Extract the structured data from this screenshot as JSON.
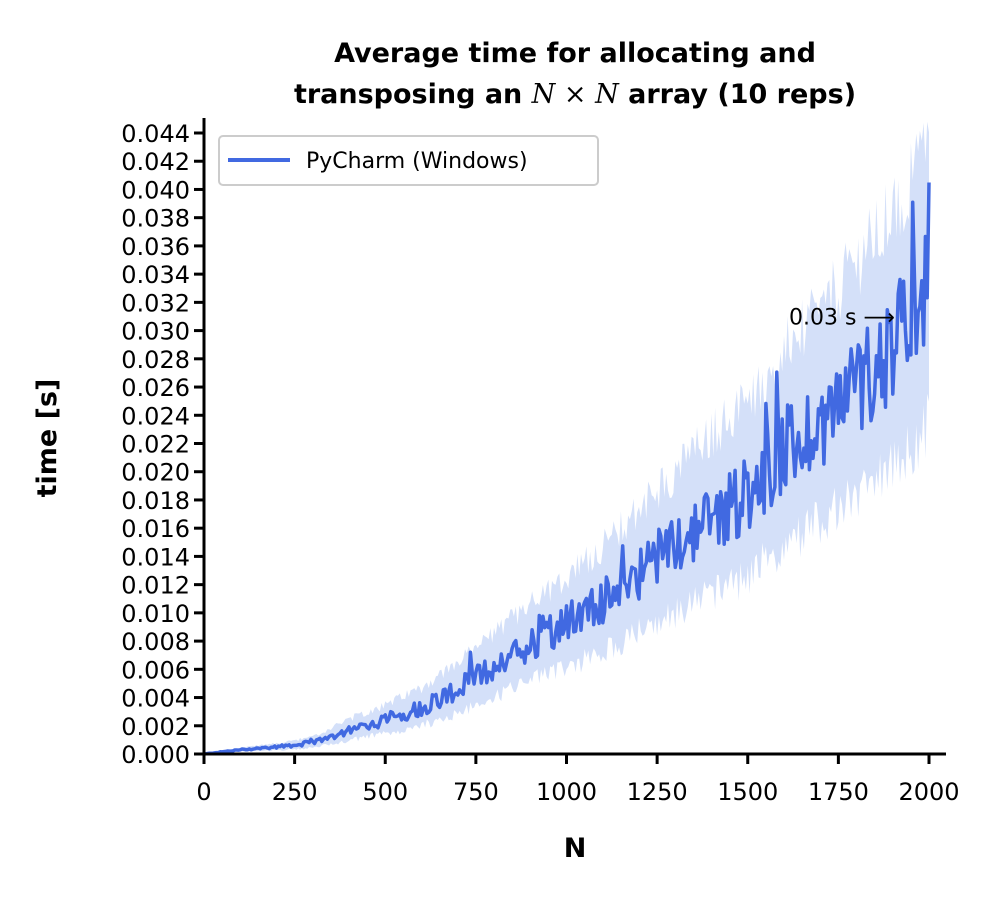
{
  "chart_data": {
    "type": "line",
    "title_line1": "Average time for allocating and",
    "title_line2_pre": "transposing an ",
    "title_line2_math": "N × N",
    "title_line2_post": " array (10 reps)",
    "xlabel": "N",
    "ylabel": "time [s]",
    "xlim": [
      0,
      2050
    ],
    "ylim": [
      0,
      0.045
    ],
    "xticks": [
      "0",
      "250",
      "500",
      "750",
      "1000",
      "1250",
      "1500",
      "1750",
      "2000"
    ],
    "yticks": [
      "0.000",
      "0.002",
      "0.004",
      "0.006",
      "0.008",
      "0.010",
      "0.012",
      "0.014",
      "0.016",
      "0.018",
      "0.020",
      "0.022",
      "0.024",
      "0.026",
      "0.028",
      "0.030",
      "0.032",
      "0.034",
      "0.036",
      "0.038",
      "0.040",
      "0.042",
      "0.044"
    ],
    "grid": false,
    "legend_position": "upper-left",
    "series": [
      {
        "name": "PyCharm (Windows)",
        "color": "#4169e1",
        "band_color": "#c6d6f7",
        "x": [
          0,
          100,
          200,
          300,
          400,
          500,
          600,
          700,
          800,
          900,
          1000,
          1100,
          1200,
          1300,
          1400,
          1500,
          1600,
          1700,
          1800,
          1900,
          2000
        ],
        "y": [
          0.0,
          0.0003,
          0.0005,
          0.0008,
          0.0017,
          0.0024,
          0.0033,
          0.0046,
          0.0062,
          0.0078,
          0.0092,
          0.0108,
          0.0128,
          0.0148,
          0.0168,
          0.0185,
          0.0215,
          0.0235,
          0.0262,
          0.029,
          0.033
        ],
        "spread": [
          0.0,
          0.0001,
          0.0002,
          0.0003,
          0.0006,
          0.0008,
          0.0011,
          0.0014,
          0.0018,
          0.0022,
          0.0026,
          0.003,
          0.0035,
          0.004,
          0.0045,
          0.005,
          0.0055,
          0.006,
          0.0066,
          0.0072,
          0.008
        ]
      }
    ],
    "annotations": [
      {
        "text": "0.03 s ⟶",
        "x": 1760,
        "y": 0.031
      }
    ]
  }
}
